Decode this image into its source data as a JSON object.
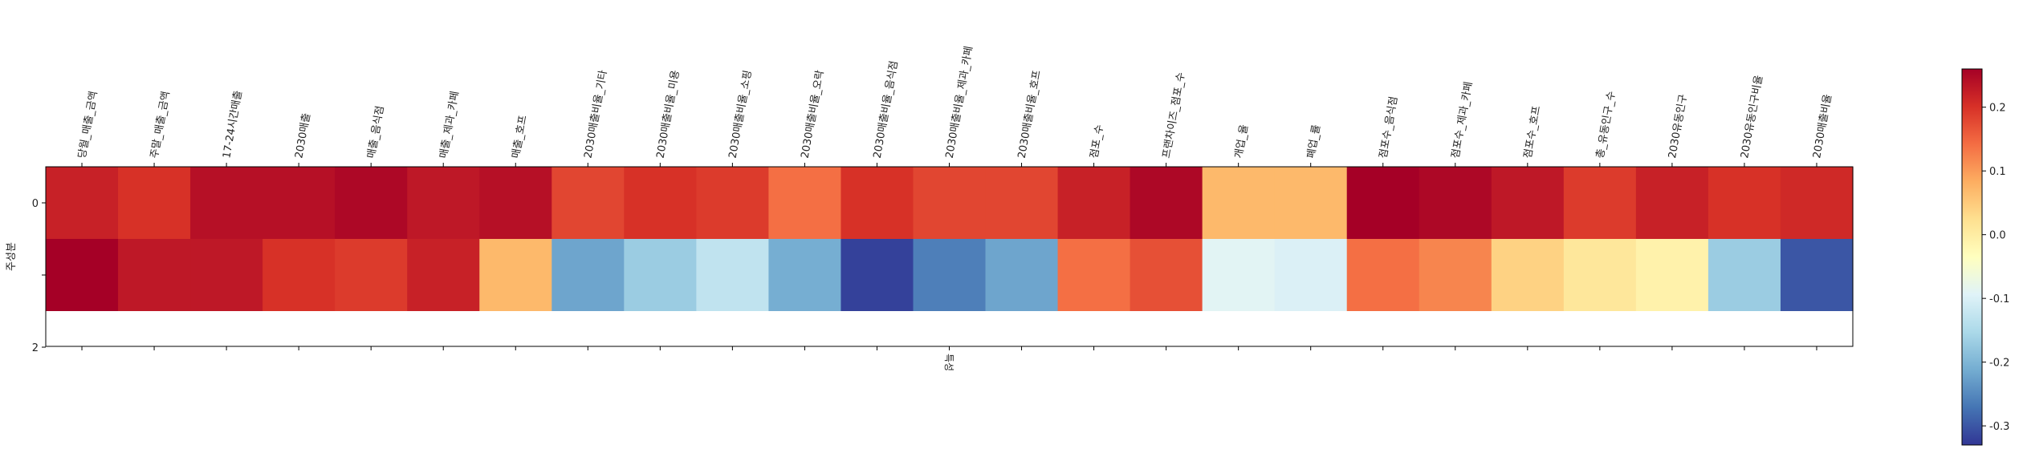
{
  "chart_data": {
    "type": "heatmap",
    "xlabel": "특성",
    "ylabel": "주성분",
    "columns": [
      "당월_매출_금액",
      "주말_매출_금액",
      "17-24시간매출",
      "2030매출",
      "매출_음식점",
      "매출_제과_카페",
      "매출_호프",
      "2030매출비율_기타",
      "2030매출비율_미용",
      "2030매출비율_소핑",
      "2030매출비율_오락",
      "2030매출비율_음식점",
      "2030매출비율_제과_카페",
      "2030매출비율_호프",
      "점포_수",
      "프랜차이즈_점포_수",
      "개업_율",
      "폐업_률",
      "점포수_음식점",
      "점포수_제과_카페",
      "점포수_호프",
      "총_유동인구_수",
      "2030유동인구",
      "2030유동인구비율",
      "2030매출비율"
    ],
    "row_ticks": [
      "0",
      "",
      "2"
    ],
    "rows": [
      [
        0.22,
        0.2,
        0.24,
        0.24,
        0.25,
        0.23,
        0.24,
        0.18,
        0.2,
        0.19,
        0.14,
        0.2,
        0.18,
        0.18,
        0.22,
        0.25,
        0.07,
        0.07,
        0.26,
        0.25,
        0.23,
        0.19,
        0.22,
        0.2,
        0.21
      ],
      [
        0.26,
        0.23,
        0.23,
        0.2,
        0.19,
        0.22,
        0.07,
        -0.22,
        -0.17,
        -0.13,
        -0.21,
        -0.32,
        -0.26,
        -0.22,
        0.14,
        0.17,
        -0.09,
        -0.1,
        0.14,
        0.12,
        0.04,
        0.01,
        -0.01,
        -0.17,
        -0.3
      ]
    ],
    "colorbar": {
      "min": -0.33,
      "max": 0.26,
      "ticks": [
        -0.3,
        -0.2,
        -0.1,
        0.0,
        0.1,
        0.2
      ],
      "tick_labels": [
        "-0.3",
        "-0.2",
        "-0.1",
        "0.0",
        "0.1",
        "0.2"
      ],
      "colormap": "RdYlBu_r"
    }
  }
}
